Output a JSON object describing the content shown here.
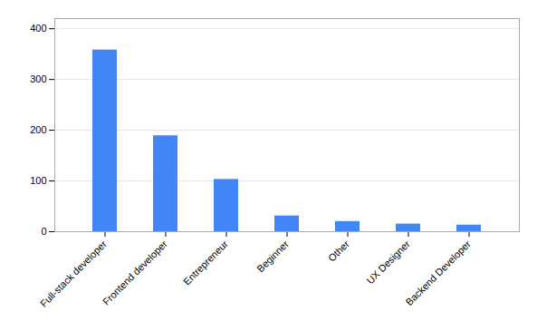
{
  "chart_data": {
    "type": "bar",
    "categories": [
      "Full-stack developer",
      "Frontend developer",
      "Entrepreneur",
      "Beginner",
      "Other",
      "UX Designer",
      "Backend Developer"
    ],
    "values": [
      358,
      189,
      103,
      31,
      20,
      15,
      13
    ],
    "color": "#4285F4",
    "ylim": [
      0,
      420
    ],
    "yticks": [
      0,
      100,
      200,
      300,
      400
    ],
    "grid": true
  }
}
